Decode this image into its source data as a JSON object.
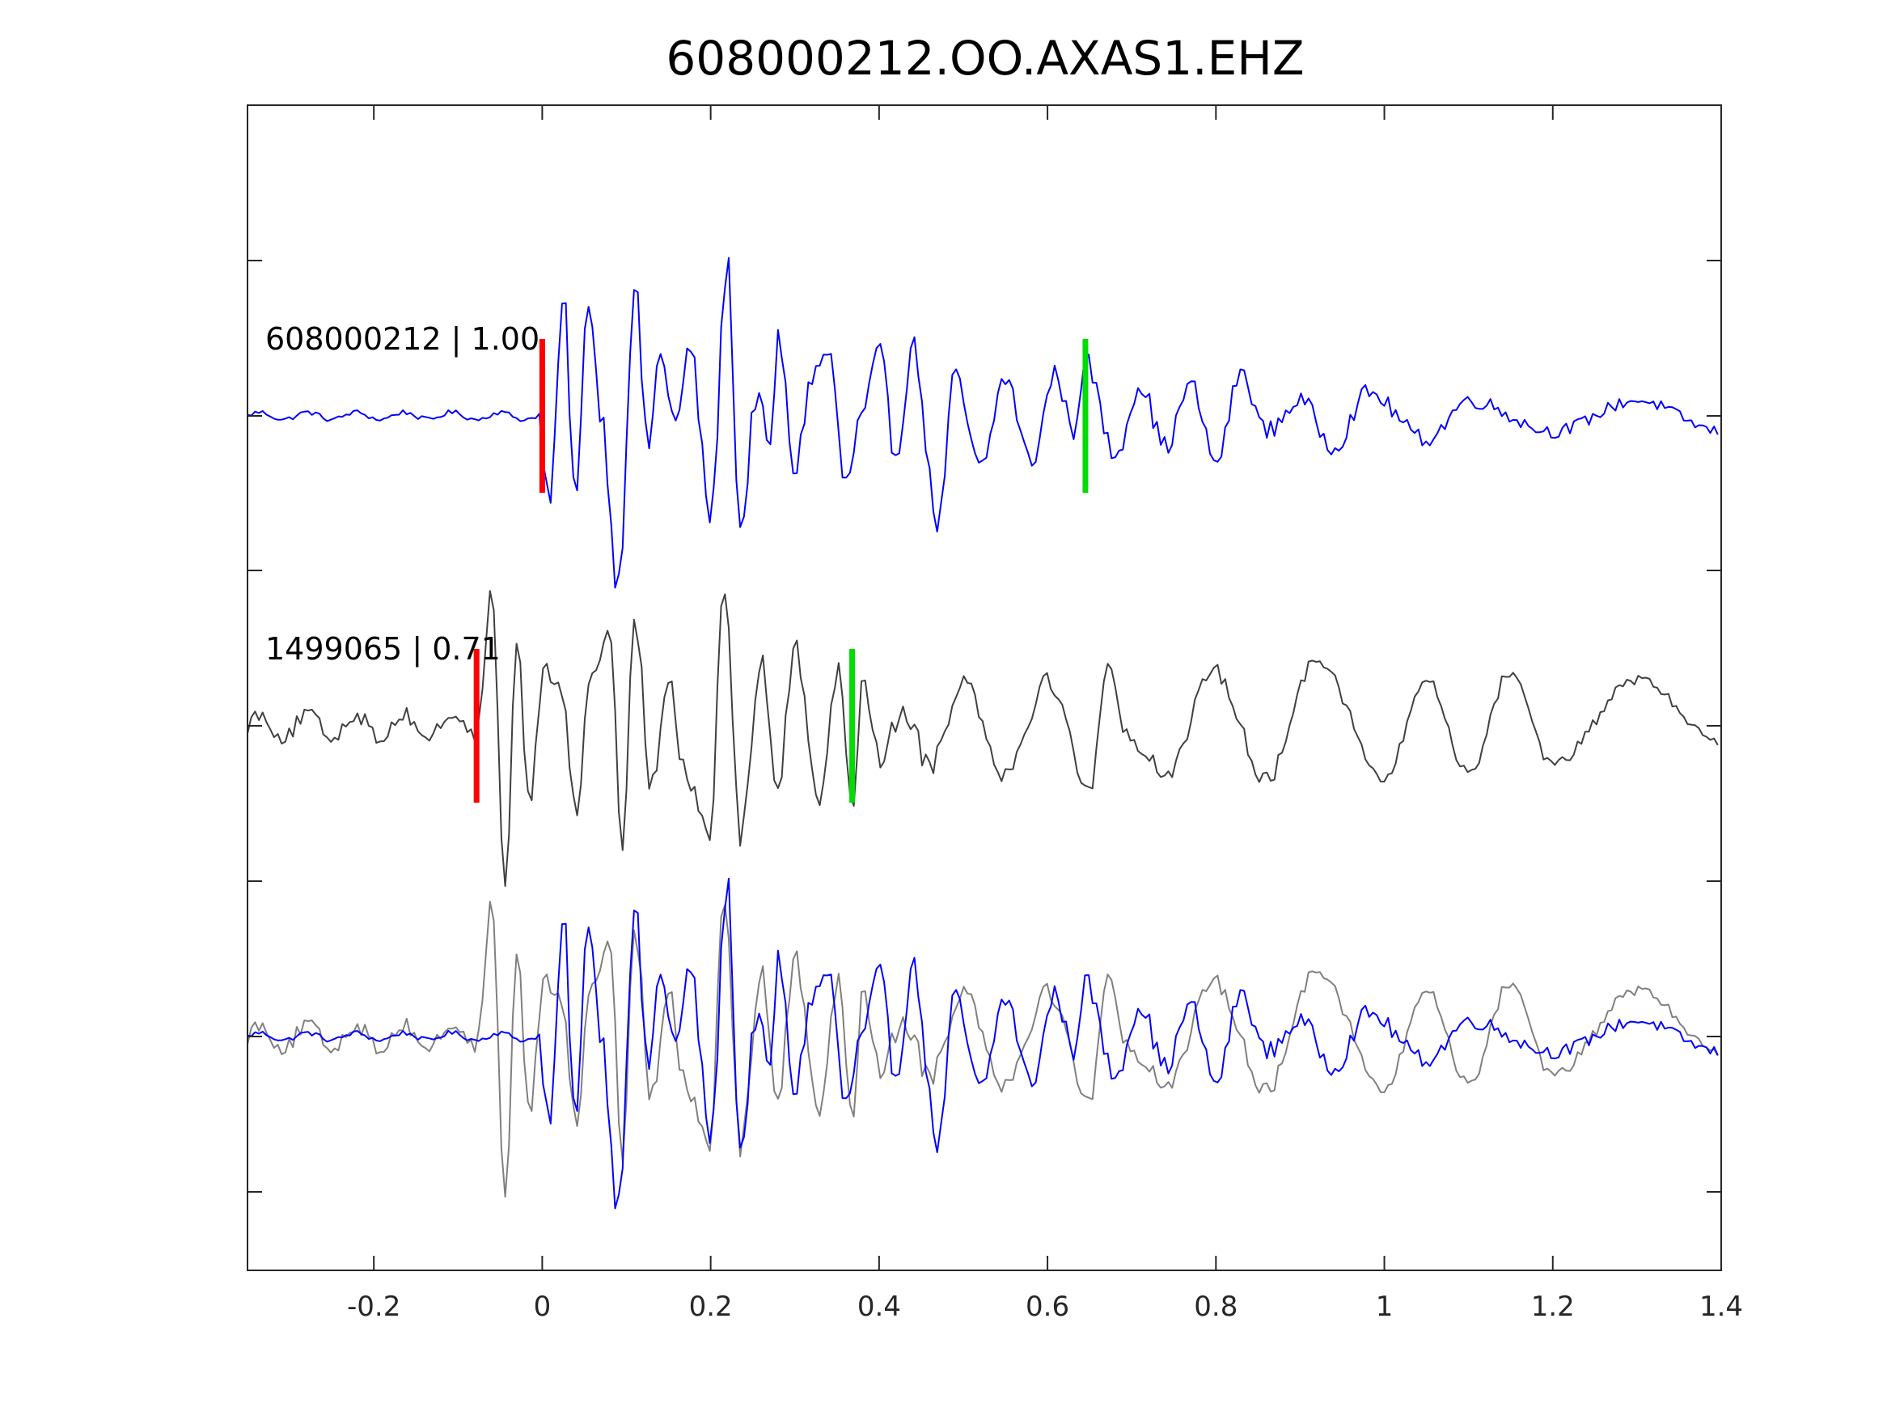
{
  "chart_data": {
    "type": "line",
    "title": "608000212.OO.AXAS1.EHZ",
    "xlabel": "",
    "ylabel": "",
    "xlim": [
      -0.35,
      1.4
    ],
    "x_ticks": [
      -0.2,
      0,
      0.2,
      0.4,
      0.6,
      0.8,
      1,
      1.2,
      1.4
    ],
    "x_tick_labels": [
      "-0.2",
      "0",
      "0.2",
      "0.4",
      "0.6",
      "0.8",
      "1",
      "1.2",
      "1.4"
    ],
    "y_ticks_count": 7,
    "grid": false,
    "legend": "none",
    "traces": [
      {
        "label": "608000212 | 1.00",
        "color": "#0000ff",
        "panel": 1,
        "p_pick": 0.0,
        "s_pick": 0.645,
        "pick_colors": {
          "p": "#ff0000",
          "s": "#00dd00"
        },
        "onset": 0.0,
        "noise_amplitude": 0.04,
        "peaks": [
          {
            "x": -0.01,
            "y": -0.12
          },
          {
            "x": 0.01,
            "y": -0.52
          },
          {
            "x": 0.025,
            "y": 0.75
          },
          {
            "x": 0.04,
            "y": -0.55
          },
          {
            "x": 0.055,
            "y": 0.8
          },
          {
            "x": 0.07,
            "y": 0.0
          },
          {
            "x": 0.09,
            "y": -1.1
          },
          {
            "x": 0.11,
            "y": 0.85
          },
          {
            "x": 0.125,
            "y": -0.2
          },
          {
            "x": 0.14,
            "y": 0.38
          },
          {
            "x": 0.16,
            "y": -0.05
          },
          {
            "x": 0.175,
            "y": 0.45
          },
          {
            "x": 0.2,
            "y": -0.65
          },
          {
            "x": 0.22,
            "y": 1.0
          },
          {
            "x": 0.235,
            "y": -0.75
          },
          {
            "x": 0.255,
            "y": 0.15
          },
          {
            "x": 0.27,
            "y": -0.25
          },
          {
            "x": 0.28,
            "y": 0.5
          },
          {
            "x": 0.3,
            "y": -0.35
          },
          {
            "x": 0.32,
            "y": 0.25
          },
          {
            "x": 0.34,
            "y": 0.42
          },
          {
            "x": 0.36,
            "y": -0.45
          },
          {
            "x": 0.38,
            "y": 0.0
          },
          {
            "x": 0.4,
            "y": 0.4
          },
          {
            "x": 0.42,
            "y": -0.25
          },
          {
            "x": 0.44,
            "y": 0.45
          },
          {
            "x": 0.47,
            "y": -0.7
          },
          {
            "x": 0.49,
            "y": 0.25
          },
          {
            "x": 0.52,
            "y": -0.35
          },
          {
            "x": 0.55,
            "y": 0.25
          },
          {
            "x": 0.58,
            "y": -0.3
          },
          {
            "x": 0.61,
            "y": 0.28
          },
          {
            "x": 0.63,
            "y": -0.1
          },
          {
            "x": 0.645,
            "y": 0.35
          },
          {
            "x": 0.68,
            "y": -0.25
          },
          {
            "x": 0.71,
            "y": 0.2
          },
          {
            "x": 0.74,
            "y": -0.2
          },
          {
            "x": 0.77,
            "y": 0.2
          },
          {
            "x": 0.8,
            "y": -0.3
          },
          {
            "x": 0.83,
            "y": 0.28
          },
          {
            "x": 0.86,
            "y": -0.1
          },
          {
            "x": 0.9,
            "y": 0.1
          },
          {
            "x": 0.94,
            "y": -0.2
          },
          {
            "x": 0.98,
            "y": 0.15
          },
          {
            "x": 1.05,
            "y": -0.15
          },
          {
            "x": 1.1,
            "y": 0.1
          },
          {
            "x": 1.2,
            "y": -0.1
          },
          {
            "x": 1.3,
            "y": 0.1
          },
          {
            "x": 1.4,
            "y": -0.1
          }
        ]
      },
      {
        "label": "1499065 | 0.71",
        "color": "#404040",
        "panel": 2,
        "p_pick": -0.078,
        "s_pick": 0.368,
        "pick_colors": {
          "p": "#ff0000",
          "s": "#00dd00"
        },
        "onset": -0.078,
        "noise_amplitude": 0.13,
        "peaks": [
          {
            "x": -0.07,
            "y": 0.3
          },
          {
            "x": -0.06,
            "y": 1.0
          },
          {
            "x": -0.045,
            "y": -1.1
          },
          {
            "x": -0.03,
            "y": 0.5
          },
          {
            "x": -0.015,
            "y": -0.5
          },
          {
            "x": 0.0,
            "y": 0.3
          },
          {
            "x": 0.02,
            "y": 0.3
          },
          {
            "x": 0.04,
            "y": -0.5
          },
          {
            "x": 0.06,
            "y": 0.35
          },
          {
            "x": 0.08,
            "y": 0.65
          },
          {
            "x": 0.095,
            "y": -0.9
          },
          {
            "x": 0.11,
            "y": 0.7
          },
          {
            "x": 0.13,
            "y": -0.4
          },
          {
            "x": 0.15,
            "y": 0.35
          },
          {
            "x": 0.17,
            "y": -0.3
          },
          {
            "x": 0.2,
            "y": -0.7
          },
          {
            "x": 0.215,
            "y": 0.95
          },
          {
            "x": 0.235,
            "y": -0.7
          },
          {
            "x": 0.26,
            "y": 0.4
          },
          {
            "x": 0.28,
            "y": -0.4
          },
          {
            "x": 0.3,
            "y": 0.5
          },
          {
            "x": 0.33,
            "y": -0.45
          },
          {
            "x": 0.35,
            "y": 0.35
          },
          {
            "x": 0.37,
            "y": -0.5
          },
          {
            "x": 0.38,
            "y": 0.35
          },
          {
            "x": 0.4,
            "y": -0.2
          },
          {
            "x": 0.43,
            "y": 0.1
          },
          {
            "x": 0.46,
            "y": -0.25
          },
          {
            "x": 0.5,
            "y": 0.3
          },
          {
            "x": 0.55,
            "y": -0.3
          },
          {
            "x": 0.6,
            "y": 0.3
          },
          {
            "x": 0.65,
            "y": -0.4
          },
          {
            "x": 0.67,
            "y": 0.35
          },
          {
            "x": 0.7,
            "y": -0.1
          },
          {
            "x": 0.74,
            "y": -0.3
          },
          {
            "x": 0.8,
            "y": 0.35
          },
          {
            "x": 0.86,
            "y": -0.35
          },
          {
            "x": 0.92,
            "y": 0.45
          },
          {
            "x": 1.0,
            "y": -0.35
          },
          {
            "x": 1.05,
            "y": 0.3
          },
          {
            "x": 1.1,
            "y": -0.3
          },
          {
            "x": 1.15,
            "y": 0.35
          },
          {
            "x": 1.2,
            "y": -0.25
          },
          {
            "x": 1.3,
            "y": 0.3
          },
          {
            "x": 1.4,
            "y": -0.1
          }
        ]
      }
    ],
    "overlay_panel": {
      "panel": 3,
      "series": [
        {
          "trace_index": 1,
          "color": "#808080"
        },
        {
          "trace_index": 0,
          "color": "#0000ff"
        }
      ]
    }
  },
  "colors": {
    "axes": "#262626",
    "background": "#ffffff"
  }
}
